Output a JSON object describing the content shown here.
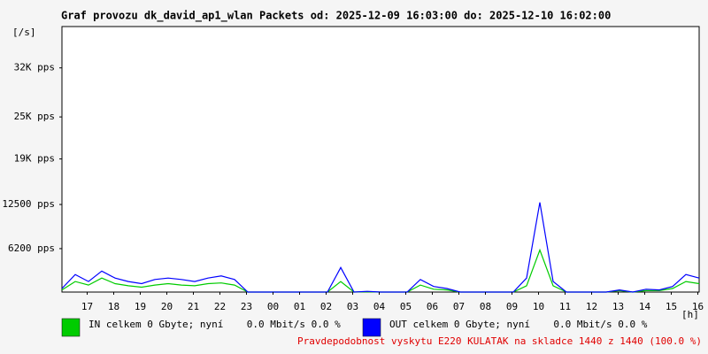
{
  "chart_data": {
    "type": "line",
    "title": "Graf provozu dk_david_ap1_wlan Packets od: 2025-12-09 16:03:00 do: 2025-12-10 16:02:00",
    "y_unit": "[/s]",
    "x_unit": "[h]",
    "note": "Pravdepodobnost vyskytu E220 KULATAK na skladce 1440 z 1440 (100.0 %)",
    "grid": false,
    "xlim": [
      0,
      24
    ],
    "ylim": [
      0,
      37900
    ],
    "xticks": [
      {
        "value": 0.95,
        "label": "17"
      },
      {
        "value": 1.95,
        "label": "18"
      },
      {
        "value": 2.95,
        "label": "19"
      },
      {
        "value": 3.95,
        "label": "20"
      },
      {
        "value": 4.95,
        "label": "21"
      },
      {
        "value": 5.95,
        "label": "22"
      },
      {
        "value": 6.95,
        "label": "23"
      },
      {
        "value": 7.95,
        "label": "00"
      },
      {
        "value": 8.95,
        "label": "01"
      },
      {
        "value": 9.95,
        "label": "02"
      },
      {
        "value": 10.95,
        "label": "03"
      },
      {
        "value": 11.95,
        "label": "04"
      },
      {
        "value": 12.95,
        "label": "05"
      },
      {
        "value": 13.95,
        "label": "06"
      },
      {
        "value": 14.95,
        "label": "07"
      },
      {
        "value": 15.95,
        "label": "08"
      },
      {
        "value": 16.95,
        "label": "09"
      },
      {
        "value": 17.95,
        "label": "10"
      },
      {
        "value": 18.95,
        "label": "11"
      },
      {
        "value": 19.95,
        "label": "12"
      },
      {
        "value": 20.95,
        "label": "13"
      },
      {
        "value": 21.95,
        "label": "14"
      },
      {
        "value": 22.95,
        "label": "15"
      },
      {
        "value": 23.95,
        "label": "16"
      }
    ],
    "yticks": [
      {
        "value": 6200,
        "label": "6200 pps"
      },
      {
        "value": 12500,
        "label": "12500 pps"
      },
      {
        "value": 19000,
        "label": "19K pps"
      },
      {
        "value": 25000,
        "label": "25K pps"
      },
      {
        "value": 32000,
        "label": "32K pps"
      }
    ],
    "x": [
      0,
      0.5,
      1,
      1.5,
      2,
      2.5,
      3,
      3.5,
      4,
      4.5,
      5,
      5.5,
      6,
      6.5,
      7,
      7.5,
      8,
      8.5,
      9,
      9.5,
      10,
      10.5,
      11,
      11.5,
      12,
      12.5,
      13,
      13.5,
      14,
      14.5,
      15,
      15.5,
      16,
      16.5,
      17,
      17.5,
      18,
      18.5,
      19,
      19.5,
      20,
      20.5,
      21,
      21.5,
      22,
      22.5,
      23,
      23.5,
      24
    ],
    "series": [
      {
        "name": "IN celkem 0 Gbyte; nyní    0.0 Mbit/s 0.0 %",
        "color": "#00cc00",
        "values": [
          300,
          1500,
          1000,
          2000,
          1200,
          900,
          700,
          1000,
          1200,
          1000,
          900,
          1200,
          1300,
          1000,
          0,
          0,
          0,
          0,
          0,
          0,
          0,
          1500,
          0,
          50,
          0,
          0,
          0,
          1000,
          400,
          300,
          0,
          0,
          0,
          0,
          0,
          900,
          6000,
          900,
          0,
          0,
          0,
          0,
          200,
          0,
          200,
          200,
          500,
          1500,
          1200
        ]
      },
      {
        "name": "OUT celkem 0 Gbyte; nyní    0.0 Mbit/s 0.0 %",
        "color": "#0000ff",
        "values": [
          500,
          2500,
          1500,
          3000,
          2000,
          1500,
          1200,
          1800,
          2000,
          1800,
          1500,
          2000,
          2300,
          1800,
          0,
          0,
          0,
          0,
          0,
          0,
          0,
          3500,
          0,
          100,
          0,
          0,
          0,
          1800,
          800,
          500,
          0,
          0,
          0,
          0,
          0,
          2000,
          12800,
          1500,
          0,
          0,
          0,
          0,
          300,
          0,
          400,
          300,
          800,
          2500,
          2000
        ]
      }
    ]
  }
}
